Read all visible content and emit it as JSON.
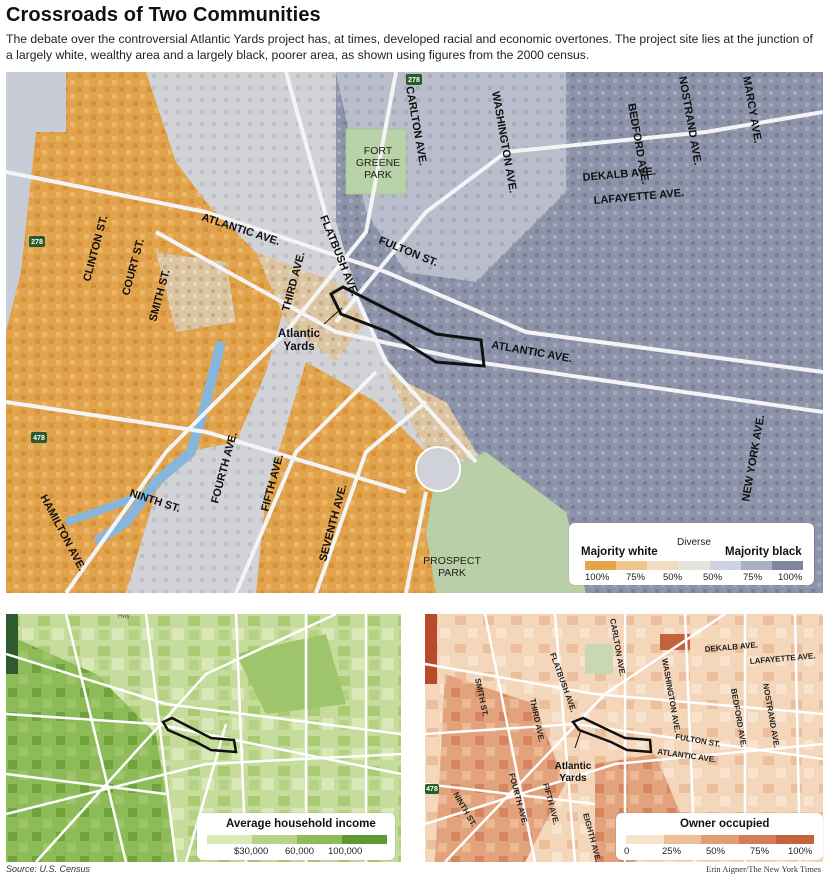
{
  "header": {
    "title": "Crossroads of Two Communities",
    "subtitle": "The debate over the controversial Atlantic Yards project has, at times, developed racial and economic overtones. The project site lies at the junction of a largely white, wealthy area and a largely black, poorer area, as shown using figures from the 2000 census."
  },
  "main_map": {
    "streets": {
      "clinton": "CLINTON ST.",
      "court": "COURT ST.",
      "smith": "SMITH ST.",
      "atlantic_w": "ATLANTIC AVE.",
      "atlantic_e": "ATLANTIC AVE.",
      "flatbush": "FLATBUSH AVE.",
      "third": "THIRD AVE.",
      "fourth": "FOURTH AVE.",
      "fifth": "FIFTH AVE.",
      "seventh": "SEVENTH AVE.",
      "ninth": "NINTH ST.",
      "hamilton": "HAMILTON AVE.",
      "fulton": "FULTON ST.",
      "carlton": "CARLTON AVE.",
      "washington": "WASHINGTON AVE.",
      "bedford": "BEDFORD AVE.",
      "nostrand": "NOSTRAND AVE.",
      "marcy": "MARCY AVE.",
      "dekalb": "DEKALB AVE.",
      "lafayette": "LAFAYETTE AVE.",
      "new_york": "NEW YORK AVE."
    },
    "parks": {
      "fort_greene_1": "FORT",
      "fort_greene_2": "GREENE",
      "fort_greene_3": "PARK",
      "prospect_1": "PROSPECT",
      "prospect_2": "PARK"
    },
    "project_label_1": "Atlantic",
    "project_label_2": "Yards",
    "highways": {
      "h278_top": "278",
      "h278_left": "278",
      "h478": "478"
    },
    "legend": {
      "left_label": "Majority white",
      "mid_label": "Diverse",
      "right_label": "Majority black",
      "ticks": [
        "100%",
        "75%",
        "50%",
        "50%",
        "75%",
        "100%"
      ],
      "colors": [
        "#e3a44a",
        "#eec58a",
        "#f0dcc0",
        "#e6e2dc",
        "#cdd3e0",
        "#a8b0c4",
        "#7f879c"
      ]
    }
  },
  "income_map": {
    "legend": {
      "title": "Average household income",
      "ticks": [
        "$30,000",
        "60,000",
        "100,000"
      ],
      "colors": [
        "#dbe9b8",
        "#b7d386",
        "#8dbb57",
        "#5f9a30"
      ]
    },
    "tiny_label": "Hwy"
  },
  "owner_map": {
    "streets": {
      "carlton": "CARLTON AVE.",
      "dekalb": "DEKALB AVE.",
      "lafayette": "LAFAYETTE AVE.",
      "washington": "WASHINGTON AVE.",
      "bedford": "BEDFORD AVE.",
      "nostrand": "NOSTRAND AVE.",
      "flatbush": "FLATBUSH AVE.",
      "smith": "SMITH ST.",
      "third": "THIRD AVE.",
      "fulton": "FULTON ST.",
      "atlantic": "ATLANTIC AVE.",
      "fourth": "FOURTH AVE.",
      "fifth": "FIFTH AVE.",
      "eighth": "EIGHTH AVE.",
      "ninth": "NINTH ST."
    },
    "project_label_1": "Atlantic",
    "project_label_2": "Yards",
    "highway": "478",
    "legend": {
      "title": "Owner occupied",
      "ticks": [
        "0",
        "25%",
        "50%",
        "75%",
        "100%"
      ],
      "colors": [
        "#f8e2cb",
        "#efbd98",
        "#e39c75",
        "#d57b55",
        "#c4623e"
      ]
    }
  },
  "footer": {
    "source": "Source: U.S. Census",
    "credit": "Erin Aigner/The New York Times"
  }
}
